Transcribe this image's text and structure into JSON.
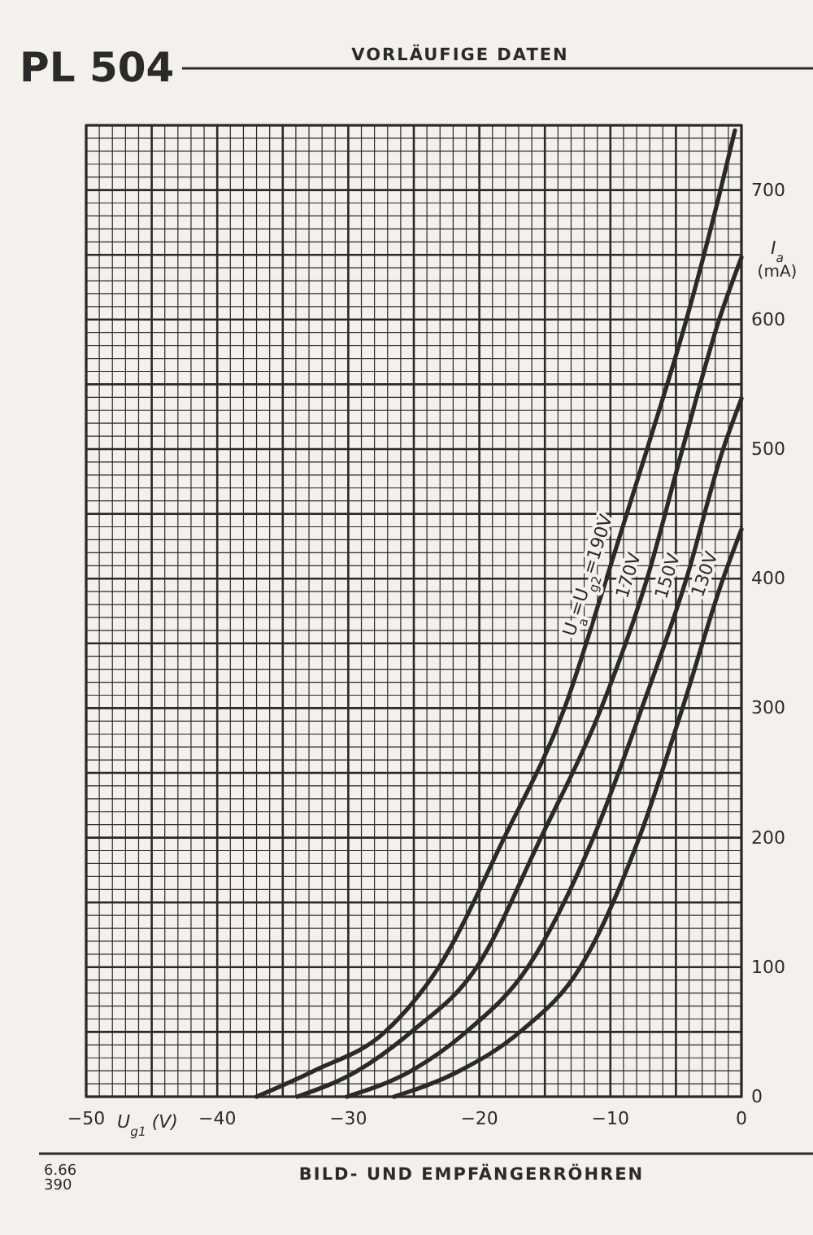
{
  "chart_data": {
    "type": "line",
    "title": "PL 504",
    "subtitle": "VORLÄUFIGE DATEN",
    "xlabel": "U$_{g1}$ (V)",
    "ylabel": "I$_{a}$ (mA)",
    "annotations": [
      "6.66",
      "390",
      "BILD- UND EMPFÄNGERRÖHREN"
    ],
    "xlim": [
      -50,
      0
    ],
    "xticks": [
      -50,
      -40,
      -30,
      -20,
      -10,
      0
    ],
    "ylim": [
      0,
      750
    ],
    "yticks": [
      0,
      100,
      200,
      300,
      400,
      500,
      600,
      700
    ],
    "grid": true,
    "marker": "none",
    "line_style": "solid",
    "series": [
      {
        "name": "U$_{a}$=U$_{g2}$=190V",
        "color": "#2a2a2a",
        "x": [
          -37,
          -32.6,
          -27.2,
          -23.1,
          -18.1,
          -13.5,
          -10.3,
          -7.2,
          -4.2,
          -1.6,
          -0.5
        ],
        "values": [
          0,
          20,
          50,
          100,
          200,
          300,
          400,
          500,
          600,
          700,
          746
        ]
      },
      {
        "name": "170V",
        "color": "#2a2a2a",
        "x": [
          -33.9,
          -29.3,
          -25.2,
          -20.2,
          -15.3,
          -10.7,
          -7.2,
          -4.5,
          -1.7,
          0
        ],
        "values": [
          0,
          20,
          50,
          100,
          200,
          300,
          400,
          500,
          600,
          648
        ]
      },
      {
        "name": "150V",
        "color": "#2a2a2a",
        "x": [
          -30.1,
          -25.2,
          -21,
          -16.3,
          -11.3,
          -7.6,
          -4.2,
          -1.4,
          0
        ],
        "values": [
          0,
          20,
          50,
          100,
          200,
          300,
          400,
          500,
          539
        ]
      },
      {
        "name": "130V",
        "color": "#2a2a2a",
        "x": [
          -26.5,
          -21.5,
          -16.9,
          -12.3,
          -7.8,
          -4.5,
          -1.4,
          0
        ],
        "values": [
          0,
          20,
          50,
          100,
          200,
          300,
          400,
          438
        ]
      }
    ]
  }
}
